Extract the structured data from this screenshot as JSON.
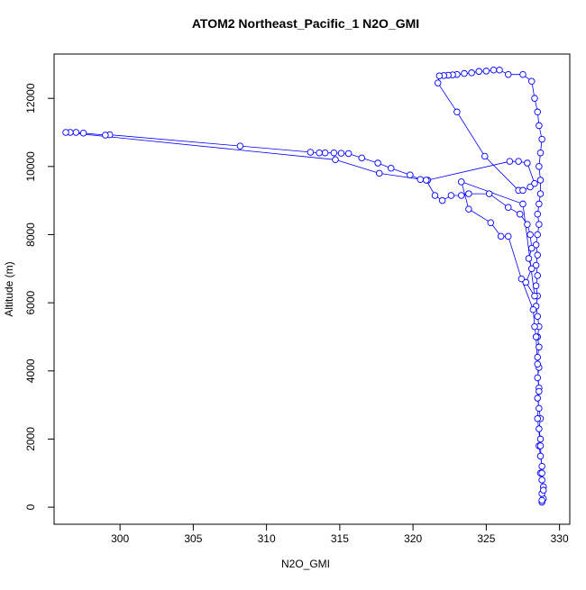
{
  "chart_data": {
    "type": "line",
    "title": "ATOM2 Northeast_Pacific_1 N2O_GMI",
    "x_label": "N2O_GMI",
    "y_label": "Altitude (m)",
    "color": "#0000ff",
    "xlim": [
      295.5,
      330.7
    ],
    "ylim": [
      -500,
      13300
    ],
    "xticks": [
      300,
      305,
      310,
      315,
      320,
      325,
      330
    ],
    "yticks": [
      0,
      2000,
      4000,
      6000,
      8000,
      10000,
      12000
    ],
    "x": [
      328.8,
      328.9,
      328.8,
      328.9,
      328.8,
      328.7,
      328.8,
      328.7,
      328.6,
      328.7,
      328.6,
      328.7,
      328.6,
      328.5,
      328.6,
      328.5,
      328.6,
      328.5,
      328.6,
      328.5,
      328.6,
      328.5,
      328.4,
      328.5,
      328.4,
      328.5,
      328.4,
      328.5,
      328.4,
      328.5,
      328.6,
      328.5,
      328.6,
      328.7,
      328.7,
      328.6,
      328.7,
      328.8,
      328.6,
      328.5,
      328.3,
      328.1,
      327.5,
      326.5,
      325.9,
      325.5,
      325.0,
      324.5,
      324.0,
      323.5,
      323.0,
      322.7,
      322.4,
      322.1,
      321.8,
      321.7,
      323.0,
      324.9,
      327.2,
      327.5,
      328.0,
      328.3,
      327.8,
      327.2,
      326.6,
      321.0,
      320.5,
      319.8,
      318.5,
      317.6,
      316.5,
      315.6,
      315.1,
      314.6,
      314.0,
      313.6,
      313.0,
      308.2,
      299.3,
      299.0,
      297.5,
      297.0,
      296.6,
      296.3,
      314.7,
      317.7,
      320.9,
      321.5,
      322.0,
      322.6,
      323.3,
      323.8,
      325.2,
      326.5,
      327.3,
      327.8,
      328.0,
      328.1,
      327.9,
      328.1,
      327.7,
      328.3,
      327.5,
      323.3,
      323.8,
      325.3,
      326.0,
      326.5,
      327.4,
      328.2,
      328.3,
      328.4,
      328.5,
      328.6,
      328.5,
      328.7,
      328.8,
      328.9,
      328.8
    ],
    "values": [
      150,
      250,
      400,
      600,
      800,
      1000,
      1200,
      1500,
      1800,
      2000,
      2300,
      2600,
      2900,
      3200,
      3500,
      3800,
      4100,
      4400,
      4700,
      5000,
      5300,
      5600,
      5900,
      6200,
      6500,
      6800,
      7100,
      7400,
      7700,
      8000,
      8300,
      8600,
      8900,
      9200,
      9600,
      10000,
      10400,
      10800,
      11200,
      11600,
      12000,
      12500,
      12700,
      12700,
      12830,
      12830,
      12800,
      12790,
      12750,
      12730,
      12700,
      12690,
      12680,
      12670,
      12660,
      12450,
      11600,
      10300,
      9300,
      9300,
      9400,
      9500,
      10100,
      10150,
      10150,
      9600,
      9620,
      9750,
      9950,
      10100,
      10250,
      10380,
      10390,
      10400,
      10400,
      10400,
      10420,
      10600,
      10930,
      10920,
      10980,
      11000,
      11000,
      11000,
      10200,
      9800,
      9600,
      9150,
      9000,
      9150,
      9150,
      9200,
      9200,
      8800,
      8600,
      8300,
      8000,
      7600,
      7300,
      7000,
      6600,
      6200,
      8900,
      9550,
      8750,
      8350,
      7950,
      7950,
      6700,
      5800,
      5300,
      5000,
      4200,
      3400,
      2600,
      1800,
      1000,
      500,
      200
    ]
  }
}
